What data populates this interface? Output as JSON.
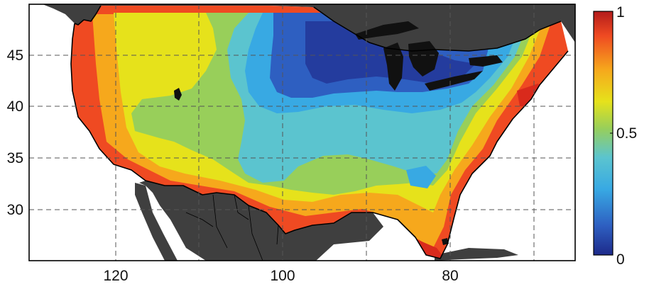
{
  "map": {
    "type": "filled-contour-map",
    "region": "Contiguous United States",
    "x_axis": {
      "ticks": [
        "120",
        "100",
        "80"
      ]
    },
    "y_axis": {
      "ticks": [
        "45",
        "40",
        "35",
        "30"
      ]
    },
    "grid": "dashed",
    "colors": {
      "ocean": "#ffffff",
      "land_outside": "#3f3f3f",
      "great_lakes": "#111111",
      "boundary_line": "#000000",
      "grid_line": "#555555"
    }
  },
  "colorbar": {
    "min_label": "0",
    "mid_label": "0.5",
    "max_label": "1",
    "min": 0,
    "max": 1,
    "colormap": "jet",
    "stops": [
      "#1d2a8a",
      "#2e5fc1",
      "#38a9e3",
      "#5bc4cf",
      "#98cf5a",
      "#e6e21b",
      "#f6a81c",
      "#ef4a22",
      "#b31b1b"
    ]
  },
  "field_levels": [
    {
      "name": "coast-deep-red",
      "value": 0.93
    },
    {
      "name": "coast-orange",
      "value": 0.78
    },
    {
      "name": "west-yellow",
      "value": 0.63
    },
    {
      "name": "plains-green",
      "value": 0.5
    },
    {
      "name": "central-teal",
      "value": 0.4
    },
    {
      "name": "north-sky-blue",
      "value": 0.28
    },
    {
      "name": "great-lakes-blue",
      "value": 0.12
    }
  ]
}
